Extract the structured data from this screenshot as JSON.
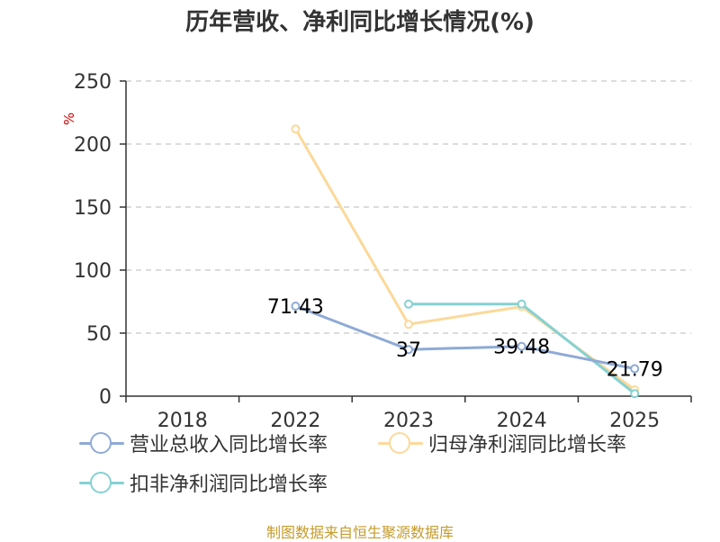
{
  "title": "历年营收、净利同比增长情况(%)",
  "source": "制图数据来自恒生聚源数据库",
  "colors": {
    "revenue": "#8eaad6",
    "net_profit": "#fbd99a",
    "deducted_profit": "#85d1d3",
    "axis": "#333333",
    "grid": "#c8c8c8",
    "unit": "#cc0000"
  },
  "chart_data": {
    "type": "line",
    "categories": [
      "2018",
      "2022",
      "2023",
      "2024",
      "2025"
    ],
    "ylim": [
      0,
      250
    ],
    "yticks": [
      "0",
      "50",
      "100",
      "150",
      "200",
      "250"
    ],
    "ylabel": "%",
    "grid": true,
    "legend_position": "bottom",
    "series": [
      {
        "name": "营业总收入同比增长率",
        "color_key": "revenue",
        "values": [
          null,
          71.43,
          37,
          39.48,
          21.79
        ],
        "labels": [
          null,
          "71.43",
          "37",
          "39.48",
          "21.79"
        ]
      },
      {
        "name": "归母净利润同比增长率",
        "color_key": "net_profit",
        "values": [
          null,
          212,
          57,
          71,
          5
        ],
        "labels": [
          null,
          null,
          null,
          null,
          null
        ]
      },
      {
        "name": "扣非净利润同比增长率",
        "color_key": "deducted_profit",
        "values": [
          null,
          null,
          73,
          73,
          2
        ],
        "labels": [
          null,
          null,
          null,
          null,
          null
        ]
      }
    ]
  }
}
